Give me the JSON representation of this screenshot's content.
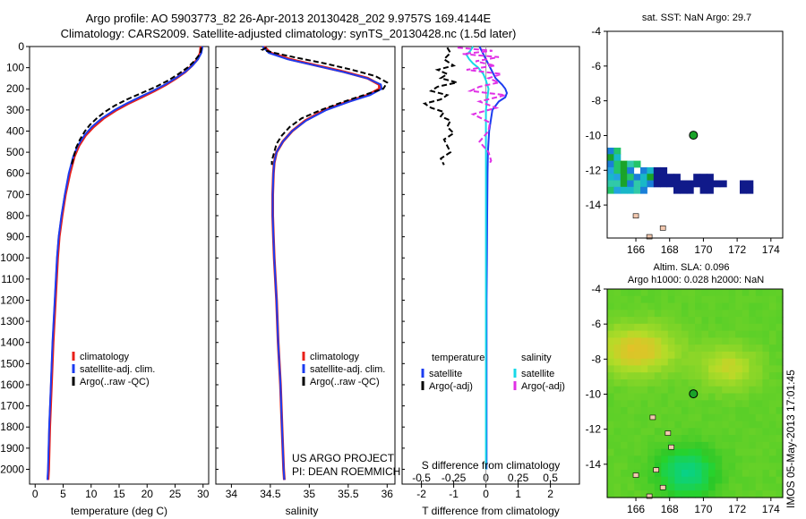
{
  "title": {
    "line1": "Argo profile: AO 5903773_82 26-Apr-2013 20130428_202 9.9757S 169.4144E",
    "line2": "Climatology: CARS2009. Satellite-adjusted climatology: synTS_20130428.nc (1.5d later)"
  },
  "colors": {
    "climatology": "#e8201a",
    "satellite": "#1c3cf0",
    "argo": "#000000",
    "sal_satellite": "#17d9e8",
    "sal_argo": "#e030e6",
    "ocean": "#ffffff",
    "dot": "#1aa329"
  },
  "chart_data": [
    {
      "type": "line",
      "name": "temperature-profile",
      "xlabel": "temperature (deg C)",
      "xlim": [
        -1,
        31
      ],
      "ylim": [
        2070,
        0
      ],
      "xticks": [
        0,
        5,
        10,
        15,
        20,
        25,
        30
      ],
      "yticks": [
        0,
        100,
        200,
        300,
        400,
        500,
        600,
        700,
        800,
        900,
        1000,
        1100,
        1200,
        1300,
        1400,
        1500,
        1600,
        1700,
        1800,
        1900,
        2000
      ],
      "legend": [
        "climatology",
        "satellite-adj. clim.",
        "Argo(..raw -QC)"
      ],
      "series": [
        {
          "name": "climatology",
          "depth": [
            0,
            30,
            60,
            90,
            120,
            150,
            180,
            210,
            240,
            270,
            300,
            340,
            380,
            420,
            470,
            520,
            600,
            700,
            800,
            900,
            1000,
            1200,
            1400,
            1600,
            1800,
            2000,
            2050
          ],
          "values": [
            29.6,
            29.5,
            29.0,
            28.0,
            26.8,
            25.2,
            23.4,
            21.3,
            19.0,
            16.6,
            14.5,
            12.2,
            10.4,
            9.0,
            7.8,
            7.0,
            6.2,
            5.4,
            4.8,
            4.3,
            4.0,
            3.6,
            3.2,
            2.9,
            2.6,
            2.4,
            2.3
          ]
        },
        {
          "name": "satellite-adj. clim.",
          "depth": [
            0,
            30,
            60,
            90,
            120,
            150,
            180,
            210,
            240,
            270,
            300,
            340,
            380,
            420,
            470,
            520,
            600,
            700,
            800,
            900,
            1000,
            1200,
            1400,
            1600,
            1800,
            2000,
            2050
          ],
          "values": [
            29.9,
            29.7,
            29.1,
            28.1,
            26.8,
            25.1,
            23.2,
            21.0,
            18.6,
            16.3,
            14.2,
            11.9,
            10.1,
            8.8,
            7.6,
            6.8,
            6.0,
            5.3,
            4.7,
            4.2,
            3.9,
            3.5,
            3.1,
            2.8,
            2.5,
            2.3,
            2.2
          ]
        },
        {
          "name": "Argo(..raw -QC)",
          "depth": [
            5,
            20,
            40,
            70,
            100,
            130,
            160,
            190,
            220,
            250,
            280,
            310,
            340,
            370,
            400,
            440,
            480,
            520,
            560
          ],
          "values": [
            29.7,
            29.6,
            29.3,
            28.4,
            27.2,
            25.6,
            23.8,
            21.6,
            19.0,
            16.4,
            14.2,
            12.4,
            11.0,
            9.8,
            8.9,
            8.0,
            7.3,
            6.9,
            6.5
          ]
        }
      ]
    },
    {
      "type": "line",
      "name": "salinity-profile",
      "xlabel": "salinity",
      "xlim": [
        33.8,
        36.1
      ],
      "ylim": [
        2070,
        0
      ],
      "xticks": [
        34,
        34.5,
        35,
        35.5,
        36
      ],
      "legend": [
        "climatology",
        "satellite-adj. clim.",
        "Argo(..raw -QC)"
      ],
      "annotation": [
        "US ARGO PROJECT",
        "PI: DEAN ROEMMICH"
      ],
      "series": [
        {
          "name": "climatology",
          "depth": [
            0,
            30,
            60,
            90,
            120,
            150,
            180,
            200,
            230,
            260,
            300,
            350,
            400,
            450,
            500,
            550,
            600,
            700,
            800,
            900,
            1000,
            1200,
            1400,
            1600,
            1800,
            2000,
            2050
          ],
          "values": [
            34.42,
            34.5,
            34.75,
            35.1,
            35.45,
            35.75,
            35.9,
            35.9,
            35.75,
            35.5,
            35.2,
            34.95,
            34.78,
            34.66,
            34.58,
            34.55,
            34.54,
            34.53,
            34.53,
            34.54,
            34.55,
            34.58,
            34.6,
            34.63,
            34.65,
            34.67,
            34.68
          ]
        },
        {
          "name": "satellite-adj. clim.",
          "depth": [
            0,
            30,
            60,
            90,
            120,
            150,
            180,
            200,
            230,
            260,
            300,
            350,
            400,
            450,
            500,
            550,
            600,
            700,
            800,
            900,
            1000,
            1200,
            1400,
            1600,
            1800,
            2000,
            2050
          ],
          "values": [
            34.4,
            34.48,
            34.72,
            35.08,
            35.43,
            35.74,
            35.92,
            35.93,
            35.78,
            35.52,
            35.22,
            34.96,
            34.78,
            34.66,
            34.58,
            34.55,
            34.54,
            34.53,
            34.53,
            34.54,
            34.55,
            34.58,
            34.6,
            34.63,
            34.65,
            34.67,
            34.68
          ]
        },
        {
          "name": "Argo(..raw -QC)",
          "depth": [
            5,
            15,
            30,
            50,
            80,
            110,
            140,
            170,
            200,
            230,
            260,
            300,
            340,
            380,
            420,
            460,
            500,
            540,
            560
          ],
          "values": [
            34.45,
            34.4,
            34.55,
            34.8,
            35.2,
            35.55,
            35.85,
            36.0,
            35.95,
            35.7,
            35.45,
            35.15,
            34.9,
            34.75,
            34.65,
            34.58,
            34.55,
            34.52,
            34.52
          ]
        }
      ]
    },
    {
      "type": "line",
      "name": "difference-profile",
      "xlabel": "T difference from climatology",
      "xlabel_top": "S difference from climatology",
      "xlim": [
        -2.6,
        2.9
      ],
      "ylim": [
        2070,
        0
      ],
      "xticks": [
        -2,
        -1,
        0,
        1,
        2
      ],
      "top_xticks": [
        -0.5,
        -0.25,
        0,
        0.25,
        0.5
      ],
      "top_xtick_labels": [
        "-0.5",
        "-0.25",
        "0",
        "0.25",
        "0.5"
      ],
      "legend_left": {
        "title": "temperature",
        "items": [
          "satellite",
          "Argo(-adj)"
        ]
      },
      "legend_right": {
        "title": "salinity",
        "items": [
          "satellite",
          "Argo(-adj)"
        ]
      },
      "series": [
        {
          "name": "temperature satellite",
          "depth": [
            0,
            30,
            60,
            90,
            120,
            150,
            180,
            200,
            220,
            240,
            260,
            280,
            300,
            350,
            400,
            500,
            600,
            800,
            1000,
            1200,
            1500,
            1800,
            2000
          ],
          "values": [
            -0.2,
            -0.1,
            0.0,
            0.1,
            0.2,
            0.3,
            0.5,
            0.6,
            0.65,
            0.6,
            0.4,
            0.3,
            0.2,
            0.15,
            0.1,
            0.06,
            0.05,
            0.04,
            0.03,
            0.02,
            0.02,
            0.02,
            0.02
          ]
        },
        {
          "name": "temperature Argo(-adj)",
          "depth": [
            5,
            30,
            60,
            90,
            110,
            130,
            150,
            170,
            190,
            210,
            230,
            250,
            270,
            290,
            310,
            330,
            350,
            380,
            410,
            440,
            470,
            500,
            530,
            560
          ],
          "values": [
            -1.2,
            -1.1,
            -1.3,
            -1.0,
            -1.5,
            -1.2,
            -1.4,
            -0.9,
            -1.5,
            -1.7,
            -1.2,
            -1.4,
            -1.9,
            -1.7,
            -1.3,
            -1.4,
            -1.1,
            -1.2,
            -1.0,
            -1.3,
            -1.2,
            -1.1,
            -1.4,
            -1.3
          ]
        },
        {
          "name": "salinity satellite",
          "depth": [
            0,
            20,
            40,
            60,
            80,
            100,
            130,
            160,
            200,
            250,
            300,
            400,
            500,
            700,
            1000,
            1300,
            1600,
            2000
          ],
          "values": [
            -0.1,
            -0.12,
            -0.15,
            -0.13,
            -0.1,
            -0.06,
            -0.02,
            0.0,
            0.02,
            0.01,
            0.0,
            0.0,
            0.0,
            0.0,
            0.0,
            0.0,
            0.0,
            0.0
          ]
        },
        {
          "name": "salinity Argo(-adj)",
          "depth": [
            5,
            20,
            35,
            50,
            70,
            90,
            110,
            130,
            150,
            170,
            190,
            210,
            230,
            260,
            290,
            320,
            360,
            400,
            450,
            500,
            540,
            560
          ],
          "values": [
            -0.22,
            0.05,
            -0.18,
            0.1,
            -0.08,
            0.07,
            -0.15,
            0.12,
            0.02,
            0.1,
            -0.05,
            -0.12,
            0.15,
            -0.05,
            0.08,
            -0.1,
            0.03,
            0.02,
            -0.05,
            0.02,
            0.04,
            0.02
          ]
        }
      ]
    },
    {
      "type": "heatmap",
      "name": "sst-map",
      "title": "sat. SST: NaN Argo: 29.7",
      "xlim": [
        164.3,
        174.7
      ],
      "ylim": [
        -15.9,
        -4
      ],
      "xticks": [
        166,
        168,
        170,
        172,
        174
      ],
      "yticks": [
        -4,
        -6,
        -8,
        -10,
        -12,
        -14
      ],
      "argo_position": {
        "lon": 169.41,
        "lat": -9.98
      }
    },
    {
      "type": "heatmap",
      "name": "sla-map",
      "title": "Altim. SLA: 0.096",
      "subtitle": "Argo h1000: 0.028 h2000: NaN",
      "xlim": [
        164.3,
        174.7
      ],
      "ylim": [
        -15.9,
        -4
      ],
      "xticks": [
        166,
        168,
        170,
        172,
        174
      ],
      "yticks": [
        -4,
        -6,
        -8,
        -10,
        -12,
        -14
      ],
      "argo_position": {
        "lon": 169.41,
        "lat": -9.98
      }
    }
  ],
  "footer_stamp": "IMOS 05-May-2013 17:01:45"
}
